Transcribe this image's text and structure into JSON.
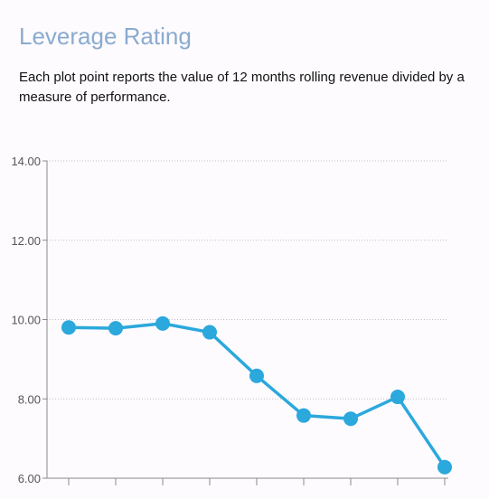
{
  "header": {
    "title": "Leverage Rating",
    "description": "Each plot point reports the value of 12 months rolling revenue divided by a measure of performance."
  },
  "colors": {
    "title": "#8aabcf",
    "series": "#2ba8dc",
    "grid": "#c4bccc",
    "axis": "#8a8a8a",
    "background": "#fdfbfe"
  },
  "chart_data": {
    "type": "line",
    "title": "",
    "xlabel": "",
    "ylabel": "",
    "ylim": [
      6,
      14
    ],
    "yticks": [
      6,
      8,
      10,
      12,
      14
    ],
    "ytick_labels": [
      "6.00",
      "8.00",
      "10.00",
      "12.00",
      "14.00"
    ],
    "grid": true,
    "x": [
      1,
      2,
      3,
      4,
      5,
      6,
      7,
      8,
      9
    ],
    "series": [
      {
        "values": [
          9.8,
          9.78,
          9.9,
          9.68,
          8.58,
          7.58,
          7.5,
          8.05,
          6.28
        ]
      }
    ]
  }
}
